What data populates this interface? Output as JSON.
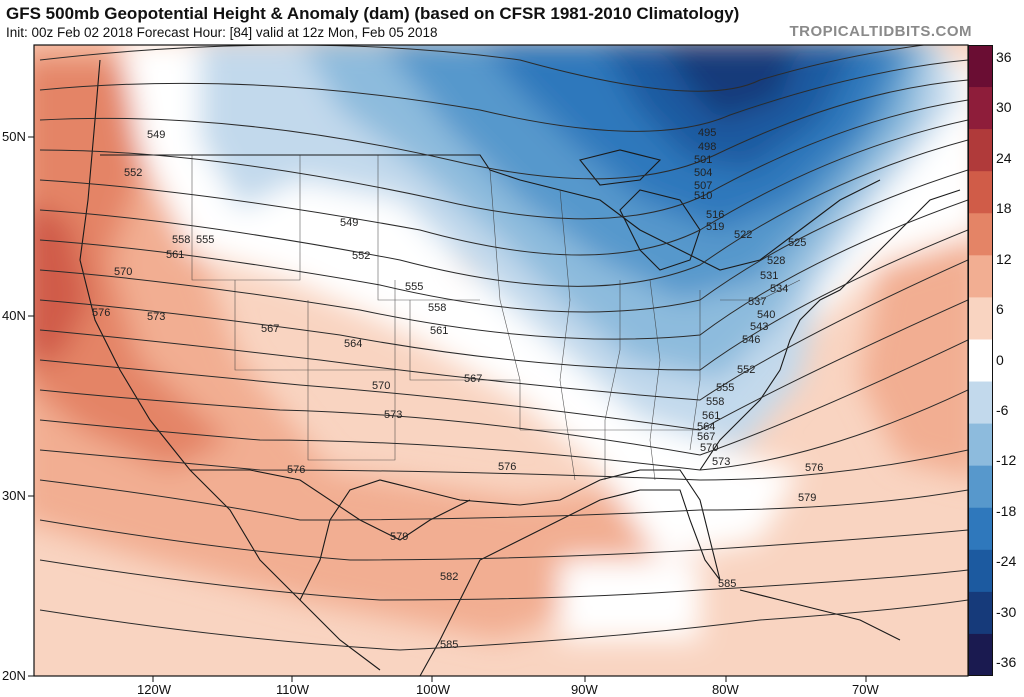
{
  "header": {
    "title": "GFS 500mb Geopotential Height & Anomaly (dam) (based on CFSR 1981-2010 Climatology)",
    "subtitle": "Init: 00z Feb 02 2018   Forecast Hour: [84]   valid at 12z Mon, Feb 05 2018",
    "brand": "TROPICALTIDBITS.COM"
  },
  "axes": {
    "lat_labels": [
      "50N",
      "40N",
      "30N",
      "20N"
    ],
    "lon_labels": [
      "120W",
      "110W",
      "100W",
      "90W",
      "80W",
      "70W"
    ]
  },
  "colorbar": {
    "labels": [
      "36",
      "30",
      "24",
      "18",
      "12",
      "6",
      "0",
      "-6",
      "-12",
      "-18",
      "-24",
      "-30",
      "-36"
    ],
    "colors": [
      "#1a1a50",
      "#163a7a",
      "#1c5aa0",
      "#2f78bc",
      "#5798cc",
      "#8dbbdd",
      "#c2d9ec",
      "#ffffff",
      "#f9d4c1",
      "#f2ae92",
      "#e48466",
      "#d05c48",
      "#b03a3a",
      "#8e1d3a",
      "#6a0d33"
    ]
  },
  "contour_labels": [
    "495",
    "498",
    "501",
    "504",
    "507",
    "510",
    "516",
    "519",
    "522",
    "525",
    "528",
    "531",
    "534",
    "537",
    "540",
    "543",
    "546",
    "549",
    "549",
    "552",
    "552",
    "552",
    "555",
    "555",
    "555",
    "558",
    "558",
    "558",
    "561",
    "561",
    "561",
    "564",
    "564",
    "567",
    "567",
    "567",
    "570",
    "570",
    "570",
    "573",
    "573",
    "573",
    "576",
    "576",
    "576",
    "576",
    "579",
    "579",
    "582",
    "585",
    "585"
  ]
}
